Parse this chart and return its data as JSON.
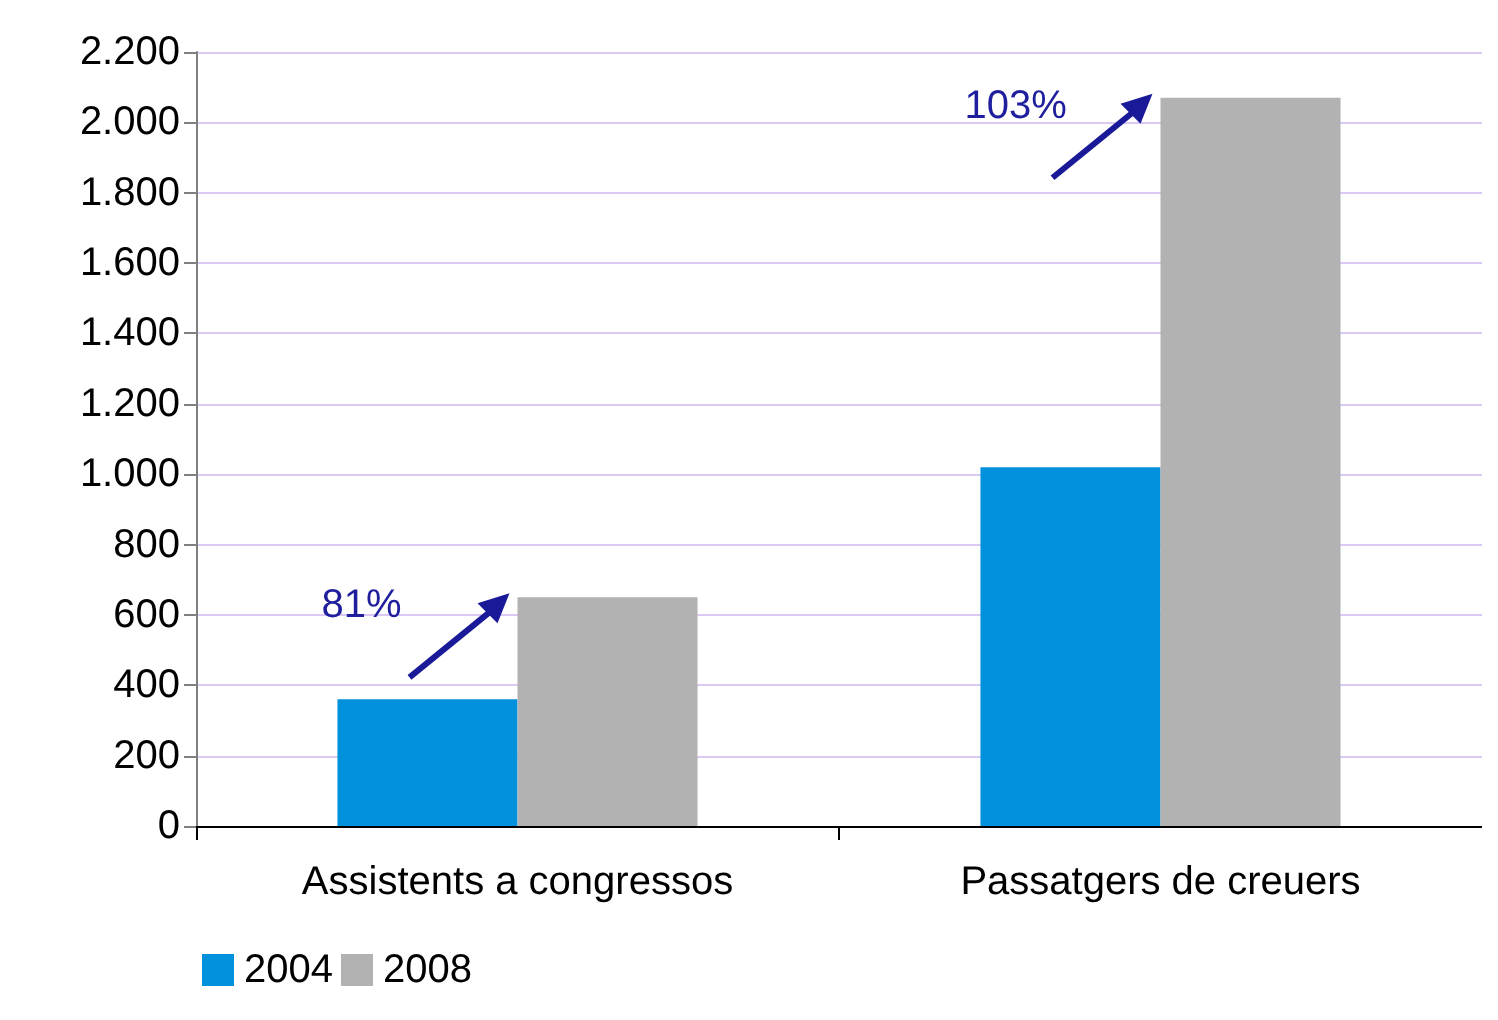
{
  "chart_data": {
    "type": "bar",
    "categories": [
      "Assistents a congressos",
      "Passatgers de creuers"
    ],
    "series": [
      {
        "name": "2004",
        "color": "#0091dc",
        "values": [
          360,
          1020
        ]
      },
      {
        "name": "2008",
        "color": "#b2b2b2",
        "values": [
          650,
          2070
        ]
      }
    ],
    "ylim": [
      0,
      2200
    ],
    "yticks": [
      0,
      200,
      400,
      600,
      800,
      {
        "value": 1000,
        "label": "1.000"
      },
      {
        "value": 1200,
        "label": "1.200"
      },
      {
        "value": 1400,
        "label": "1.400"
      },
      {
        "value": 1600,
        "label": "1.600"
      },
      {
        "value": 1800,
        "label": "1.800"
      },
      {
        "value": 2000,
        "label": "2.000"
      },
      {
        "value": 2200,
        "label": "2.200"
      }
    ],
    "grid": "y",
    "legend": "bottom left",
    "annotations": [
      {
        "text": "81%",
        "x": "Assistents a congressos",
        "y": 650
      },
      {
        "text": "103%",
        "x": "Passatgers de creuers",
        "y": 2070
      }
    ]
  }
}
